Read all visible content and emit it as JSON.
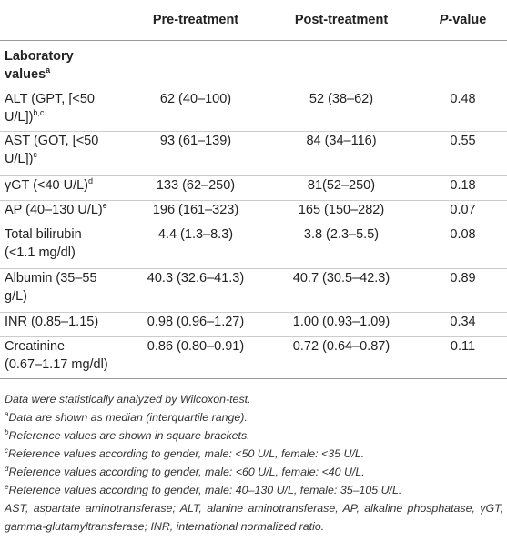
{
  "table": {
    "headers": {
      "col0": "",
      "col1": "Pre-treatment",
      "col2": "Post-treatment",
      "col3_italic": "P",
      "col3_rest": "-value"
    },
    "section_label_line1": "Laboratory",
    "section_label_line2": "values",
    "section_label_sup": "a",
    "rows": [
      {
        "label_l1": "ALT (GPT, [<50",
        "label_l2": "U/L])",
        "label_sup": "b,c",
        "pre": "62 (40–100)",
        "post": "52 (38–62)",
        "p": "0.48"
      },
      {
        "label_l1": "AST (GOT, [<50",
        "label_l2": "U/L])",
        "label_sup": "c",
        "pre": "93 (61–139)",
        "post": "84 (34–116)",
        "p": "0.55"
      },
      {
        "label_l1": "γGT (<40 U/L)",
        "label_l2": "",
        "label_sup": "d",
        "pre": "133 (62–250)",
        "post": "81(52–250)",
        "p": "0.18"
      },
      {
        "label_l1": "AP (40–130 U/L)",
        "label_l2": "",
        "label_sup": "e",
        "pre": "196 (161–323)",
        "post": "165 (150–282)",
        "p": "0.07"
      },
      {
        "label_l1": "Total bilirubin",
        "label_l2": "(<1.1 mg/dl)",
        "label_sup": "",
        "pre": "4.4 (1.3–8.3)",
        "post": "3.8 (2.3–5.5)",
        "p": "0.08"
      },
      {
        "label_l1": "Albumin (35–55",
        "label_l2": "g/L)",
        "label_sup": "",
        "pre": "40.3 (32.6–41.3)",
        "post": "40.7 (30.5–42.3)",
        "p": "0.89"
      },
      {
        "label_l1": "INR (0.85–1.15)",
        "label_l2": "",
        "label_sup": "",
        "pre": "0.98 (0.96–1.27)",
        "post": "1.00 (0.93–1.09)",
        "p": "0.34"
      },
      {
        "label_l1": "Creatinine",
        "label_l2": "(0.67–1.17 mg/dl)",
        "label_sup": "",
        "pre": "0.86 (0.80–0.91)",
        "post": "0.72 (0.64–0.87)",
        "p": "0.11"
      }
    ]
  },
  "footnotes": {
    "stat": "Data were statistically analyzed by Wilcoxon-test.",
    "a_mark": "a",
    "a_text": "Data are shown as median (interquartile range).",
    "b_mark": "b",
    "b_text": "Reference values are shown in square brackets.",
    "c_mark": "c",
    "c_text": "Reference values according to gender, male: <50 U/L, female: <35 U/L.",
    "d_mark": "d",
    "d_text": "Reference values according to gender, male: <60 U/L, female: <40 U/L.",
    "e_mark": "e",
    "e_text": "Reference values according to gender, male: 40–130 U/L, female: 35–105 U/L.",
    "abbrev": "AST, aspartate aminotransferase; ALT, alanine aminotransferase, AP, alkaline phosphatase, γGT, gamma-glutamyltransferase; INR, international normalized ratio."
  }
}
